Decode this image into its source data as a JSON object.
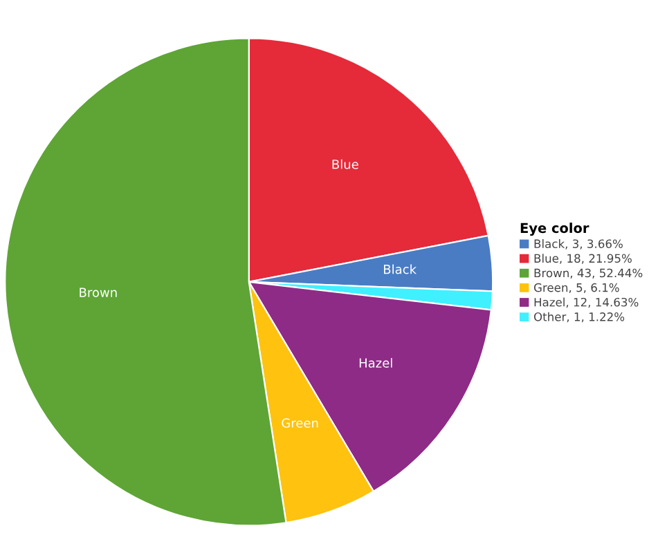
{
  "chart_data": {
    "type": "pie",
    "legend_title": "Eye color",
    "legend": "right",
    "categories": [
      "Black",
      "Blue",
      "Brown",
      "Green",
      "Hazel",
      "Other"
    ],
    "values": [
      3,
      18,
      43,
      5,
      12,
      1
    ],
    "value_labels": [
      ", 3, 3.66%",
      ", 18, 21.95%",
      ", 43, 52.44%",
      ", 5, 6.1%",
      ", 12, 14.63%",
      ", 1, 1.22%"
    ],
    "colors": [
      "#4a7cc4",
      "#e52a3a",
      "#5ea535",
      "#ffc20e",
      "#8e2b86",
      "#40f0ff"
    ]
  }
}
